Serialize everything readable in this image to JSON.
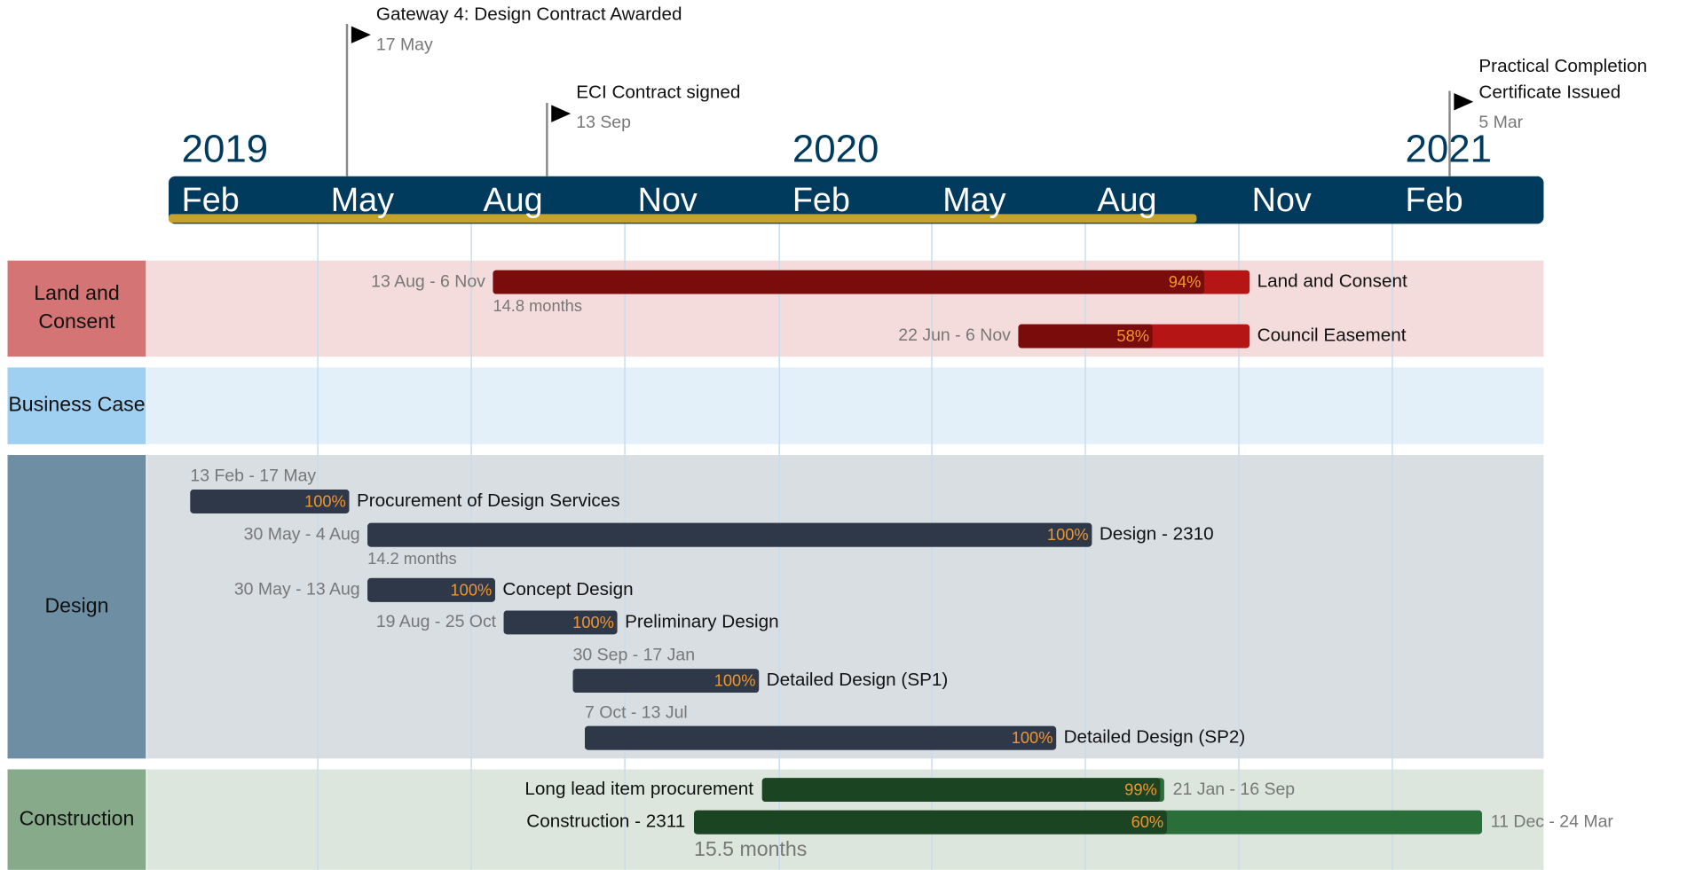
{
  "timescale": {
    "years": [
      2019,
      2020,
      2021
    ],
    "months": [
      "Feb",
      "May",
      "Aug",
      "Nov",
      "Feb",
      "May",
      "Aug",
      "Nov",
      "Feb"
    ]
  },
  "milestones": [
    {
      "title": [
        "Gateway 4: Design Contract Awarded"
      ],
      "date": "17 May"
    },
    {
      "title": [
        "ECI Contract signed"
      ],
      "date": "13 Sep"
    },
    {
      "title": [
        "Practical Completion",
        "Certificate Issued"
      ],
      "date": "5 Mar"
    }
  ],
  "lanes": [
    {
      "label": [
        "Land and",
        "Consent"
      ],
      "tasks": [
        {
          "name": "Land and Consent",
          "dates": "13 Aug - 6 Nov",
          "duration": "14.8 months",
          "progress": 94,
          "progress_label": "94%"
        },
        {
          "name": "Council Easement",
          "dates": "22 Jun - 6 Nov",
          "progress": 58,
          "progress_label": "58%"
        }
      ]
    },
    {
      "label": [
        "Business Case"
      ],
      "tasks": []
    },
    {
      "label": [
        "Design"
      ],
      "tasks": [
        {
          "name": "Procurement of Design Services",
          "dates": "13 Feb - 17 May",
          "progress": 100,
          "progress_label": "100%"
        },
        {
          "name": "Design - 2310",
          "dates": "30 May - 4 Aug",
          "duration": "14.2 months",
          "progress": 100,
          "progress_label": "100%"
        },
        {
          "name": "Concept Design",
          "dates": "30 May - 13 Aug",
          "progress": 100,
          "progress_label": "100%"
        },
        {
          "name": "Preliminary Design",
          "dates": "19 Aug - 25 Oct",
          "progress": 100,
          "progress_label": "100%"
        },
        {
          "name": "Detailed Design (SP1)",
          "dates": "30 Sep - 17 Jan",
          "progress": 100,
          "progress_label": "100%"
        },
        {
          "name": "Detailed Design (SP2)",
          "dates": "7 Oct - 13 Jul",
          "progress": 100,
          "progress_label": "100%"
        }
      ]
    },
    {
      "label": [
        "Construction"
      ],
      "tasks": [
        {
          "name": "Long lead item procurement",
          "dates": "21 Jan - 16 Sep",
          "progress": 99,
          "progress_label": "99%"
        },
        {
          "name": "Construction - 2311",
          "dates": "11 Dec - 24 Mar",
          "duration": "15.5 months",
          "progress": 60,
          "progress_label": "60%"
        }
      ]
    }
  ]
}
